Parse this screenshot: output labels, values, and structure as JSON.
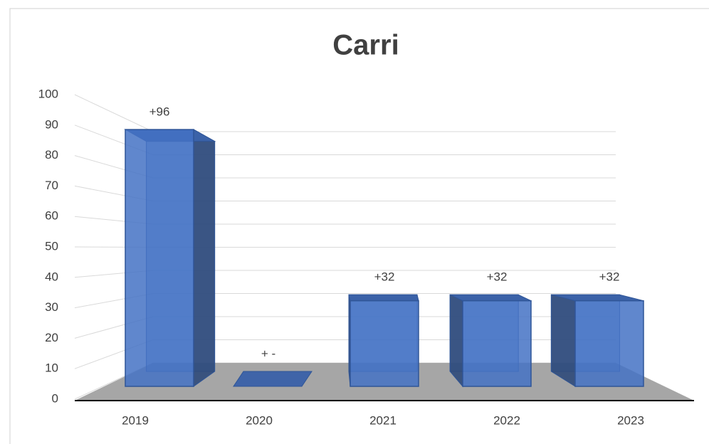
{
  "chart_data": {
    "type": "bar3d",
    "title": "Carri",
    "categories": [
      "2019",
      "2020",
      "2021",
      "2022",
      "2023"
    ],
    "values": [
      96,
      0,
      32,
      32,
      32
    ],
    "value_labels": [
      "+96",
      "+ -",
      "+32",
      "+32",
      "+32"
    ],
    "color": "#4472c4",
    "ylim": [
      0,
      100
    ],
    "yticks": [
      0,
      10,
      20,
      30,
      40,
      50,
      60,
      70,
      80,
      90,
      100
    ],
    "grid": true
  }
}
